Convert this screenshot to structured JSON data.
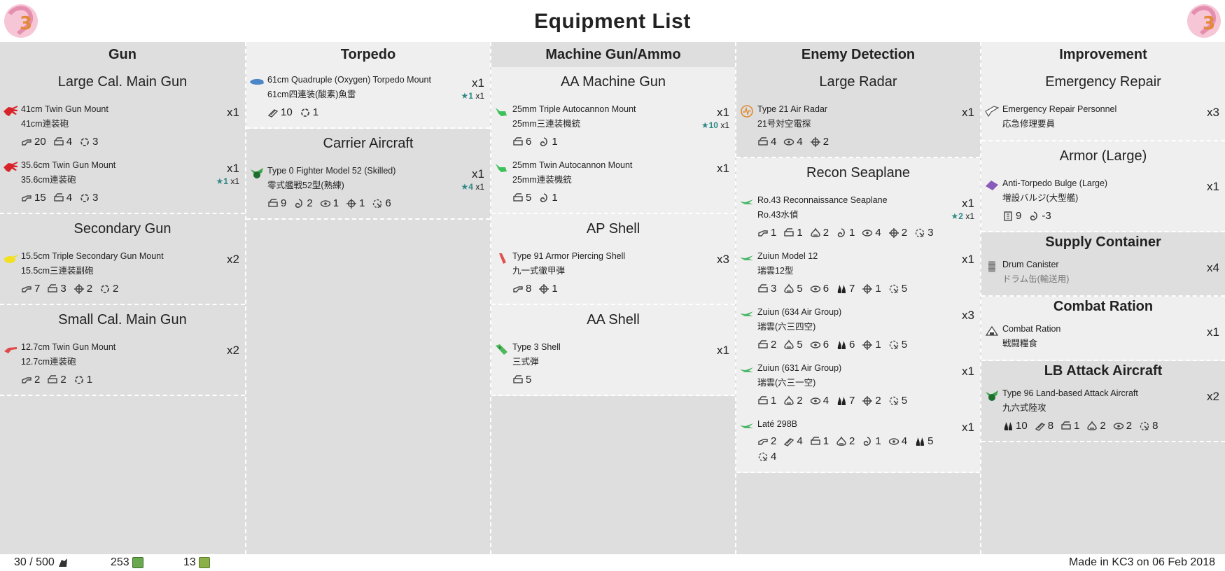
{
  "page": {
    "title": "Equipment List"
  },
  "columns": [
    {
      "header": "Gun",
      "sections": [
        {
          "title": "Large Cal. Main Gun",
          "items": [
            {
              "en": "41cm Twin Gun Mount",
              "jp": "41cm連装砲",
              "icon": "large-gun-icon",
              "color": "#d6242a",
              "count": "x1",
              "improve": "",
              "stats": [
                {
                  "icon": "firepower-icon",
                  "value": "20"
                },
                {
                  "icon": "anti-air-icon",
                  "value": "4"
                },
                {
                  "icon": "accuracy-icon",
                  "value": "3"
                }
              ]
            },
            {
              "en": "35.6cm Twin Gun Mount",
              "jp": "35.6cm連装砲",
              "icon": "large-gun-icon",
              "color": "#d6242a",
              "count": "x1",
              "improve": "★1",
              "improve_count": "x1",
              "stats": [
                {
                  "icon": "firepower-icon",
                  "value": "15"
                },
                {
                  "icon": "anti-air-icon",
                  "value": "4"
                },
                {
                  "icon": "accuracy-icon",
                  "value": "3"
                }
              ]
            }
          ]
        },
        {
          "title": "Secondary Gun",
          "items": [
            {
              "en": "15.5cm Triple Secondary Gun Mount",
              "jp": "15.5cm三連装副砲",
              "icon": "secondary-gun-icon",
              "color": "#f2e021",
              "count": "x2",
              "improve": "",
              "stats": [
                {
                  "icon": "firepower-icon",
                  "value": "7"
                },
                {
                  "icon": "anti-air-icon",
                  "value": "3"
                },
                {
                  "icon": "hit-icon",
                  "value": "2"
                },
                {
                  "icon": "accuracy-icon",
                  "value": "2"
                }
              ]
            }
          ]
        },
        {
          "title": "Small Cal. Main Gun",
          "items": [
            {
              "en": "12.7cm Twin Gun Mount",
              "jp": "12.7cm連装砲",
              "icon": "small-gun-icon",
              "color": "#e04a4a",
              "count": "x2",
              "improve": "",
              "stats": [
                {
                  "icon": "firepower-icon",
                  "value": "2"
                },
                {
                  "icon": "anti-air-icon",
                  "value": "2"
                },
                {
                  "icon": "accuracy-icon",
                  "value": "1"
                }
              ]
            }
          ]
        }
      ]
    },
    {
      "header": "Torpedo",
      "sections": [
        {
          "title": "",
          "items": [
            {
              "en": "61cm Quadruple (Oxygen) Torpedo Mount",
              "jp": "61cm四連装(酸素)魚雷",
              "icon": "torpedo-icon",
              "color": "#4a86c8",
              "count": "x1",
              "improve": "★1",
              "improve_count": "x1",
              "stats": [
                {
                  "icon": "torpedo-stat-icon",
                  "value": "10"
                },
                {
                  "icon": "accuracy-icon",
                  "value": "1"
                }
              ]
            }
          ]
        },
        {
          "title": "Carrier Aircraft",
          "items": [
            {
              "en": "Type 0 Fighter Model 52 (Skilled)",
              "jp": "零式艦戦52型(熟練)",
              "icon": "fighter-icon",
              "color": "#3aa54a",
              "count": "x1",
              "improve": "★4",
              "improve_count": "x1",
              "stats": [
                {
                  "icon": "anti-air-icon",
                  "value": "9"
                },
                {
                  "icon": "evasion-icon",
                  "value": "2"
                },
                {
                  "icon": "los-icon",
                  "value": "1"
                },
                {
                  "icon": "hit-icon",
                  "value": "1"
                },
                {
                  "icon": "range-icon",
                  "value": "6"
                }
              ]
            }
          ]
        }
      ]
    },
    {
      "header": "Machine Gun/Ammo",
      "sections": [
        {
          "title": "AA Machine Gun",
          "items": [
            {
              "en": "25mm Triple Autocannon Mount",
              "jp": "25mm三連装機銃",
              "icon": "aa-gun-icon",
              "color": "#3ec05a",
              "count": "x1",
              "improve": "★10",
              "improve_count": "x1",
              "stats": [
                {
                  "icon": "anti-air-icon",
                  "value": "6"
                },
                {
                  "icon": "evasion-icon",
                  "value": "1"
                }
              ]
            },
            {
              "en": "25mm Twin Autocannon Mount",
              "jp": "25mm連装機銃",
              "icon": "aa-gun-icon",
              "color": "#3ec05a",
              "count": "x1",
              "improve": "",
              "stats": [
                {
                  "icon": "anti-air-icon",
                  "value": "5"
                },
                {
                  "icon": "evasion-icon",
                  "value": "1"
                }
              ]
            }
          ]
        },
        {
          "title": "AP Shell",
          "items": [
            {
              "en": "Type 91 Armor Piercing Shell",
              "jp": "九一式徹甲弾",
              "icon": "ap-shell-icon",
              "color": "#e05050",
              "count": "x3",
              "improve": "",
              "stats": [
                {
                  "icon": "firepower-icon",
                  "value": "8"
                },
                {
                  "icon": "hit-icon",
                  "value": "1"
                }
              ]
            }
          ]
        },
        {
          "title": "AA Shell",
          "items": [
            {
              "en": "Type 3 Shell",
              "jp": "三式弾",
              "icon": "aa-shell-icon",
              "color": "#4cb85a",
              "count": "x1",
              "improve": "",
              "stats": [
                {
                  "icon": "anti-air-icon",
                  "value": "5"
                }
              ]
            }
          ]
        }
      ]
    },
    {
      "header": "Enemy Detection",
      "sections": [
        {
          "title": "Large Radar",
          "items": [
            {
              "en": "Type 21 Air Radar",
              "jp": "21号対空電探",
              "icon": "radar-icon",
              "color": "#e08a30",
              "count": "x1",
              "improve": "",
              "stats": [
                {
                  "icon": "anti-air-icon",
                  "value": "4"
                },
                {
                  "icon": "los-icon",
                  "value": "4"
                },
                {
                  "icon": "hit-icon",
                  "value": "2"
                }
              ]
            }
          ]
        },
        {
          "title": "Recon Seaplane",
          "items": [
            {
              "en": "Ro.43 Reconnaissance Seaplane",
              "jp": "Ro.43水偵",
              "icon": "seaplane-icon",
              "color": "#4cb86a",
              "count": "x1",
              "improve": "★2",
              "improve_count": "x1",
              "stats": [
                {
                  "icon": "firepower-icon",
                  "value": "1"
                },
                {
                  "icon": "anti-air-icon",
                  "value": "1"
                },
                {
                  "icon": "asw-icon",
                  "value": "2"
                },
                {
                  "icon": "evasion-icon",
                  "value": "1"
                },
                {
                  "icon": "los-icon",
                  "value": "4"
                },
                {
                  "icon": "hit-icon",
                  "value": "2"
                },
                {
                  "icon": "range-icon",
                  "value": "3"
                }
              ]
            },
            {
              "en": "Zuiun Model 12",
              "jp": "瑞雲12型",
              "icon": "seaplane-icon",
              "color": "#4cb86a",
              "count": "x1",
              "improve": "",
              "stats": [
                {
                  "icon": "anti-air-icon",
                  "value": "3"
                },
                {
                  "icon": "asw-icon",
                  "value": "5"
                },
                {
                  "icon": "los-icon",
                  "value": "6"
                },
                {
                  "icon": "bombing-icon",
                  "value": "7"
                },
                {
                  "icon": "hit-icon",
                  "value": "1"
                },
                {
                  "icon": "range-icon",
                  "value": "5"
                }
              ]
            },
            {
              "en": "Zuiun (634 Air Group)",
              "jp": "瑞雲(六三四空)",
              "icon": "seaplane-icon",
              "color": "#4cb86a",
              "count": "x3",
              "improve": "",
              "stats": [
                {
                  "icon": "anti-air-icon",
                  "value": "2"
                },
                {
                  "icon": "asw-icon",
                  "value": "5"
                },
                {
                  "icon": "los-icon",
                  "value": "6"
                },
                {
                  "icon": "bombing-icon",
                  "value": "6"
                },
                {
                  "icon": "hit-icon",
                  "value": "1"
                },
                {
                  "icon": "range-icon",
                  "value": "5"
                }
              ]
            },
            {
              "en": "Zuiun (631 Air Group)",
              "jp": "瑞雲(六三一空)",
              "icon": "seaplane-icon",
              "color": "#4cb86a",
              "count": "x1",
              "improve": "",
              "stats": [
                {
                  "icon": "anti-air-icon",
                  "value": "1"
                },
                {
                  "icon": "asw-icon",
                  "value": "2"
                },
                {
                  "icon": "los-icon",
                  "value": "4"
                },
                {
                  "icon": "bombing-icon",
                  "value": "7"
                },
                {
                  "icon": "hit-icon",
                  "value": "2"
                },
                {
                  "icon": "range-icon",
                  "value": "5"
                }
              ]
            },
            {
              "en": "Laté 298B",
              "jp": "",
              "icon": "seaplane-icon",
              "color": "#4cb86a",
              "count": "x1",
              "improve": "",
              "stats": [
                {
                  "icon": "firepower-icon",
                  "value": "2"
                },
                {
                  "icon": "torpedo-stat-icon",
                  "value": "4"
                },
                {
                  "icon": "anti-air-icon",
                  "value": "1"
                },
                {
                  "icon": "asw-icon",
                  "value": "2"
                },
                {
                  "icon": "evasion-icon",
                  "value": "1"
                },
                {
                  "icon": "los-icon",
                  "value": "4"
                },
                {
                  "icon": "bombing-icon",
                  "value": "5"
                },
                {
                  "icon": "range-icon",
                  "value": "4"
                }
              ]
            }
          ]
        }
      ]
    },
    {
      "header": "Improvement",
      "sections": [
        {
          "title": "Emergency Repair",
          "items": [
            {
              "en": "Emergency Repair Personnel",
              "jp": "応急修理要員",
              "icon": "repair-icon",
              "color": "#ffffff",
              "count": "x3",
              "improve": "",
              "stats": []
            }
          ]
        },
        {
          "title": "Armor (Large)",
          "items": [
            {
              "en": "Anti-Torpedo Bulge (Large)",
              "jp": "増設バルジ(大型艦)",
              "icon": "bulge-icon",
              "color": "#8a5ab8",
              "count": "x1",
              "improve": "",
              "stats": [
                {
                  "icon": "armor-icon",
                  "value": "9"
                },
                {
                  "icon": "evasion-icon",
                  "value": "-3"
                }
              ]
            }
          ]
        },
        {
          "title": "Supply Container",
          "bold": true,
          "items": [
            {
              "en": "Drum Canister",
              "jp": "ドラム缶(輸送用)",
              "jp_grey": true,
              "icon": "drum-icon",
              "color": "#9a9a9a",
              "count": "x4",
              "improve": "",
              "stats": []
            }
          ]
        },
        {
          "title": "Combat Ration",
          "bold": true,
          "items": [
            {
              "en": "Combat Ration",
              "jp": "戦闘糧食",
              "icon": "ration-icon",
              "color": "#ffffff",
              "count": "x1",
              "improve": "",
              "stats": []
            }
          ]
        },
        {
          "title": "LB Attack Aircraft",
          "bold": true,
          "items": [
            {
              "en": "Type 96 Land-based Attack Aircraft",
              "jp": "九六式陸攻",
              "icon": "land-attacker-icon",
              "color": "#3aa54a",
              "count": "x2",
              "improve": "",
              "stats": [
                {
                  "icon": "bombing-icon",
                  "value": "10"
                },
                {
                  "icon": "torpedo-stat-icon",
                  "value": "8"
                },
                {
                  "icon": "anti-air-icon",
                  "value": "1"
                },
                {
                  "icon": "asw-icon",
                  "value": "2"
                },
                {
                  "icon": "los-icon",
                  "value": "2"
                },
                {
                  "icon": "range-icon",
                  "value": "8"
                }
              ]
            }
          ]
        }
      ]
    }
  ],
  "footer": {
    "slots": "30 / 500",
    "buckets": "253",
    "screws": "13",
    "credit": "Made in KC3 on 06 Feb 2018"
  }
}
